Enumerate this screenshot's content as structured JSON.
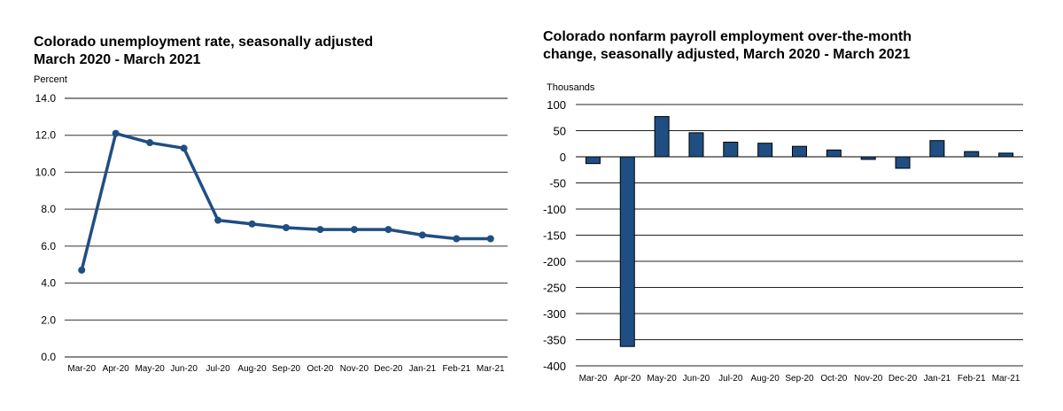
{
  "chart_data": [
    {
      "type": "line",
      "title": "Colorado unemployment rate, seasonally adjusted\nMarch 2020 - March 2021",
      "ylabel": "Percent",
      "xlabel": "",
      "categories": [
        "Mar-20",
        "Apr-20",
        "May-20",
        "Jun-20",
        "Jul-20",
        "Aug-20",
        "Sep-20",
        "Oct-20",
        "Nov-20",
        "Dec-20",
        "Jan-21",
        "Feb-21",
        "Mar-21"
      ],
      "values": [
        4.7,
        12.1,
        11.6,
        11.3,
        7.4,
        7.2,
        7.0,
        6.9,
        6.9,
        6.9,
        6.6,
        6.4,
        6.4
      ],
      "ylim": [
        0,
        14
      ],
      "yticks": [
        "0.0",
        "2.0",
        "4.0",
        "6.0",
        "8.0",
        "10.0",
        "12.0",
        "14.0"
      ],
      "grid": true,
      "color": "#1f4e82"
    },
    {
      "type": "bar",
      "title": "Colorado nonfarm payroll employment over-the-month\nchange, seasonally adjusted, March 2020 - March 2021",
      "ylabel": "Thousands",
      "xlabel": "",
      "categories": [
        "Mar-20",
        "Apr-20",
        "May-20",
        "Jun-20",
        "Jul-20",
        "Aug-20",
        "Sep-20",
        "Oct-20",
        "Nov-20",
        "Dec-20",
        "Jan-21",
        "Feb-21",
        "Mar-21"
      ],
      "values": [
        -13,
        -363,
        77,
        46,
        28,
        26,
        20,
        13,
        -5,
        -22,
        31,
        10,
        7
      ],
      "ylim": [
        -400,
        100
      ],
      "yticks": [
        "-400",
        "-350",
        "-300",
        "-250",
        "-200",
        "-150",
        "-100",
        "-50",
        "0",
        "50",
        "100"
      ],
      "grid": true,
      "color": "#1f4e82"
    }
  ]
}
